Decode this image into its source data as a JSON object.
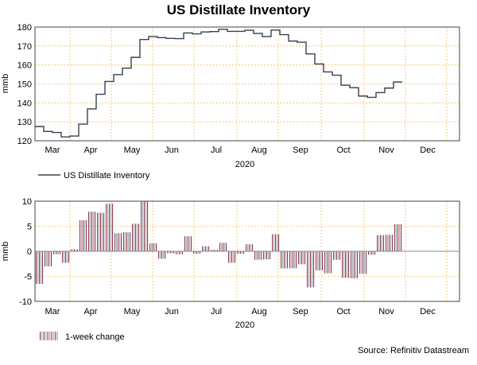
{
  "title": "US Distillate Inventory",
  "source": "Source: Refinitiv Datastream",
  "colors": {
    "line": "#3a3f52",
    "bar_a": "#8c3a4a",
    "bar_b": "#9aa3b5",
    "grid": "#f0c060",
    "zero_line": "#888888"
  },
  "chart_data": [
    {
      "type": "line",
      "title": "US Distillate Inventory",
      "ylabel": "mmb",
      "xlabel": "2020",
      "ylim": [
        120,
        180
      ],
      "yticks": [
        120,
        130,
        140,
        150,
        160,
        170,
        180
      ],
      "x_tick_labels": [
        "Mar",
        "Apr",
        "May",
        "Jun",
        "Jul",
        "Aug",
        "Sep",
        "Oct",
        "Nov",
        "Dec"
      ],
      "legend": "US Distillate Inventory",
      "grid": true,
      "series": [
        {
          "name": "US Distillate Inventory",
          "week": [
            0,
            1,
            2,
            3,
            4,
            5,
            6,
            7,
            8,
            9,
            10,
            11,
            12,
            13,
            14,
            15,
            16,
            17,
            18,
            19,
            20,
            21,
            22,
            23,
            24,
            25,
            26,
            27,
            28,
            29,
            30,
            31,
            32,
            33,
            34,
            35,
            36,
            37,
            38,
            39,
            40,
            41
          ],
          "values": [
            127.5,
            124.9,
            124.4,
            122.0,
            122.5,
            128.8,
            136.8,
            144.5,
            151.3,
            154.9,
            158.3,
            164.0,
            173.4,
            175.0,
            174.4,
            174.0,
            173.9,
            176.9,
            176.4,
            177.4,
            177.6,
            178.8,
            177.7,
            177.7,
            178.3,
            176.6,
            175.0,
            178.4,
            176.0,
            172.6,
            172.0,
            165.8,
            160.5,
            156.3,
            154.6,
            149.3,
            148.0,
            143.6,
            142.9,
            145.4,
            147.8,
            151.0
          ]
        }
      ]
    },
    {
      "type": "bar",
      "title": "1-week change",
      "ylabel": "mmb",
      "xlabel": "2020",
      "ylim": [
        -10,
        10
      ],
      "yticks": [
        -10,
        -5,
        0,
        5,
        10
      ],
      "x_tick_labels": [
        "Mar",
        "Apr",
        "May",
        "Jun",
        "Jul",
        "Aug",
        "Sep",
        "Oct",
        "Nov",
        "Dec"
      ],
      "legend": "1-week change",
      "grid": true,
      "series": [
        {
          "name": "1-week change",
          "week": [
            0,
            1,
            2,
            3,
            4,
            5,
            6,
            7,
            8,
            9,
            10,
            11,
            12,
            13,
            14,
            15,
            16,
            17,
            18,
            19,
            20,
            21,
            22,
            23,
            24,
            25,
            26,
            27,
            28,
            29,
            30,
            31,
            32,
            33,
            34,
            35,
            36,
            37,
            38,
            39,
            40,
            41
          ],
          "values": [
            -6.5,
            -3.0,
            -0.6,
            -2.3,
            0.4,
            6.2,
            7.9,
            7.7,
            9.5,
            3.6,
            3.8,
            5.5,
            9.9,
            1.6,
            -1.5,
            -0.4,
            -0.6,
            3.0,
            -0.5,
            1.0,
            0.3,
            1.7,
            -2.3,
            -0.5,
            1.4,
            -1.7,
            -1.6,
            3.4,
            -3.4,
            -3.4,
            -2.6,
            -7.2,
            -3.8,
            -4.4,
            -1.7,
            -5.3,
            -5.4,
            -4.5,
            -0.7,
            3.2,
            3.3,
            5.4
          ]
        }
      ]
    }
  ]
}
